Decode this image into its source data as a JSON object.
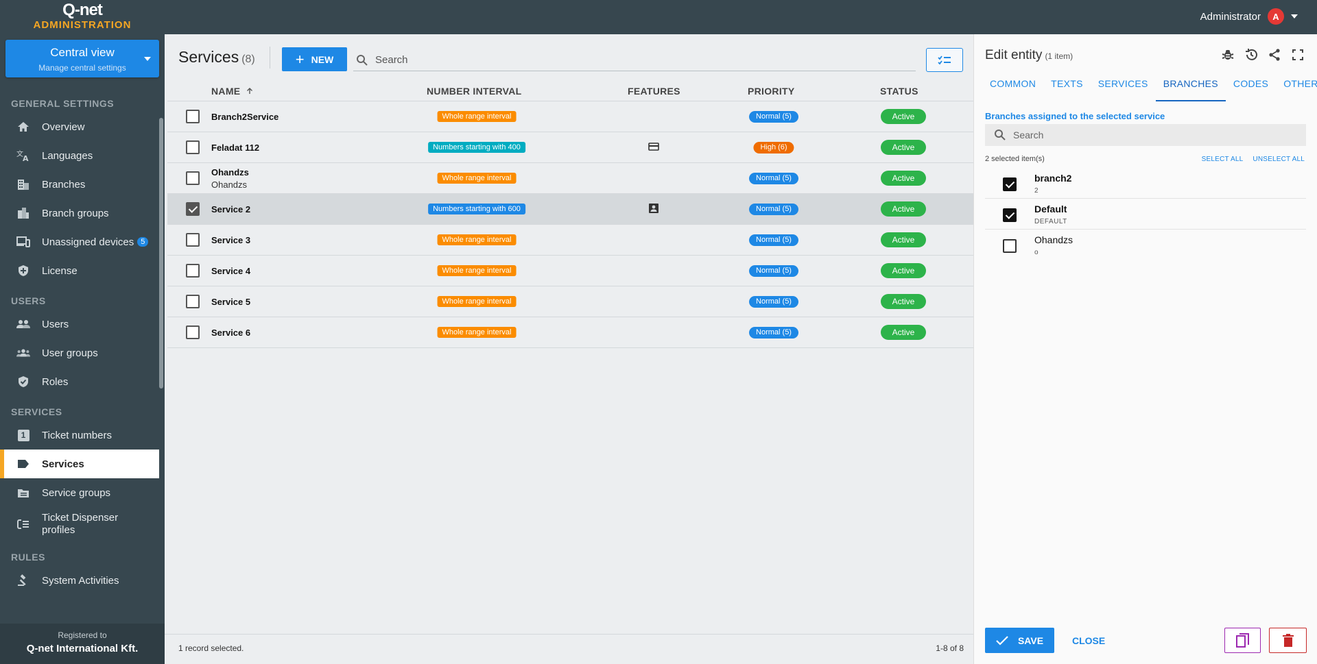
{
  "app": {
    "brand": "Q-net",
    "subtitle": "ADMINISTRATION"
  },
  "user": {
    "name": "Administrator",
    "initial": "A"
  },
  "sidebar": {
    "central": {
      "title": "Central view",
      "subtitle": "Manage central settings"
    },
    "sections": [
      {
        "label": "GENERAL SETTINGS"
      },
      {
        "label": "USERS"
      },
      {
        "label": "SERVICES"
      },
      {
        "label": "RULES"
      }
    ],
    "items": {
      "overview": "Overview",
      "languages": "Languages",
      "branches": "Branches",
      "branch_groups": "Branch groups",
      "unassigned_devices": "Unassigned devices",
      "unassigned_badge": "5",
      "license": "License",
      "users": "Users",
      "user_groups": "User groups",
      "roles": "Roles",
      "ticket_numbers": "Ticket numbers",
      "ticket_numbers_icon_text": "1",
      "services": "Services",
      "service_groups": "Service groups",
      "ticket_dispenser_profiles": "Ticket Dispenser profiles",
      "system_activities": "System Activities"
    },
    "registered": {
      "label": "Registered to",
      "company": "Q-net International Kft."
    }
  },
  "main": {
    "title": "Services",
    "count": "(8)",
    "new_label": "NEW",
    "search_placeholder": "Search",
    "columns": {
      "name": "NAME",
      "interval": "NUMBER INTERVAL",
      "features": "FEATURES",
      "priority": "PRIORITY",
      "status": "STATUS"
    },
    "rows": [
      {
        "name": "Branch2Service",
        "desc": "",
        "interval": "Whole range interval",
        "priority": "Normal (5)",
        "status": "Active"
      },
      {
        "name": "Feladat 112",
        "desc": "",
        "interval": "Numbers starting with 400",
        "priority": "High (6)",
        "status": "Active"
      },
      {
        "name": "Ohandzs",
        "desc": "Ohandzs",
        "interval": "Whole range interval",
        "priority": "Normal (5)",
        "status": "Active"
      },
      {
        "name": "Service 2",
        "desc": "",
        "interval": "Numbers starting with 600",
        "priority": "Normal (5)",
        "status": "Active"
      },
      {
        "name": "Service 3",
        "desc": "",
        "interval": "Whole range interval",
        "priority": "Normal (5)",
        "status": "Active"
      },
      {
        "name": "Service 4",
        "desc": "",
        "interval": "Whole range interval",
        "priority": "Normal (5)",
        "status": "Active"
      },
      {
        "name": "Service 5",
        "desc": "",
        "interval": "Whole range interval",
        "priority": "Normal (5)",
        "status": "Active"
      },
      {
        "name": "Service 6",
        "desc": "",
        "interval": "Whole range interval",
        "priority": "Normal (5)",
        "status": "Active"
      }
    ],
    "footer_left": "1 record selected.",
    "footer_right": "1-8 of 8"
  },
  "panel": {
    "title": "Edit entity",
    "subtitle": "(1 item)",
    "tabs": [
      "COMMON",
      "TEXTS",
      "SERVICES",
      "BRANCHES",
      "CODES",
      "OTHERS"
    ],
    "active_tab": "BRANCHES",
    "assigned_label": "Branches assigned to the selected service",
    "search_placeholder": "Search",
    "selected_count": "2 selected item(s)",
    "select_all": "SELECT ALL",
    "unselect_all": "UNSELECT ALL",
    "branches": [
      {
        "name": "branch2",
        "code": "2",
        "checked": true
      },
      {
        "name": "Default",
        "code": "DEFAULT",
        "checked": true
      },
      {
        "name": "Ohandzs",
        "code": "o",
        "checked": false
      }
    ],
    "save_label": "SAVE",
    "close_label": "CLOSE"
  },
  "colors": {
    "topbar": "#37474f",
    "accent": "#1e88e5",
    "active_marker": "#f5a623",
    "status_active": "#2db34a",
    "interval_whole": "#fb8c00",
    "interval_400": "#00acc1",
    "interval_600": "#1e88e5",
    "priority_normal": "#1e88e5",
    "priority_high": "#ef6c00",
    "copy_border": "#9c27b0",
    "delete": "#c62828"
  }
}
